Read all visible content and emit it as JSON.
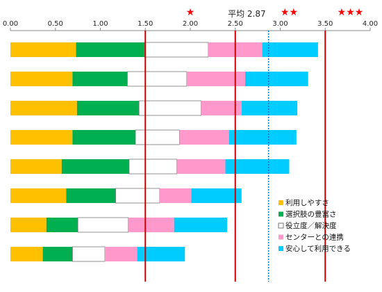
{
  "chart_data": {
    "type": "bar",
    "orientation": "horizontal",
    "stacked": true,
    "xlim": [
      0,
      4.0
    ],
    "x_ticks": [
      "0.00",
      "0.50",
      "1.00",
      "1.50",
      "2.00",
      "2.50",
      "3.00",
      "3.50",
      "4.00"
    ],
    "categories": [
      "",
      "",
      "",
      "",
      "",
      "",
      "",
      ""
    ],
    "series": [
      {
        "name": "利用しやすさ",
        "color": "#ffc000",
        "values": [
          0.73,
          0.69,
          0.74,
          0.69,
          0.57,
          0.62,
          0.4,
          0.36
        ]
      },
      {
        "name": "選択肢の豊富さ",
        "color": "#00b050",
        "values": [
          0.76,
          0.61,
          0.69,
          0.7,
          0.75,
          0.55,
          0.35,
          0.33
        ]
      },
      {
        "name": "役立度／解決度",
        "color": "#ffffff",
        "values": [
          0.71,
          0.66,
          0.69,
          0.49,
          0.53,
          0.49,
          0.56,
          0.36
        ]
      },
      {
        "name": "センターとの連携",
        "color": "#ff99cc",
        "values": [
          0.6,
          0.65,
          0.45,
          0.55,
          0.54,
          0.35,
          0.51,
          0.36
        ]
      },
      {
        "name": "安心して利用できる",
        "color": "#00ccff",
        "values": [
          0.62,
          0.7,
          0.62,
          0.75,
          0.71,
          0.56,
          0.59,
          0.53
        ]
      }
    ],
    "reference_lines": [
      {
        "value": 1.5,
        "style": "solid",
        "color": "#cc0000"
      },
      {
        "value": 2.5,
        "style": "solid",
        "color": "#cc0000"
      },
      {
        "value": 2.87,
        "style": "dotted",
        "color": "#0070c0"
      },
      {
        "value": 3.5,
        "style": "solid",
        "color": "#cc0000"
      }
    ],
    "annotations": [
      {
        "text": "★",
        "x": 2.0
      },
      {
        "text": "★★",
        "x": 3.1
      },
      {
        "text": "★★★",
        "x": 3.78
      }
    ],
    "average_label": "平均 2.87",
    "average_value": 2.87,
    "legend_position": "bottom-right",
    "grid": false
  }
}
